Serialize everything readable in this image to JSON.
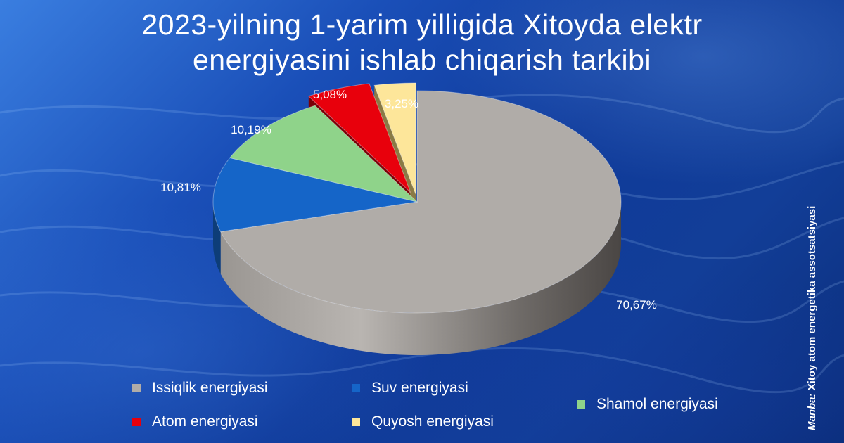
{
  "title": {
    "line1": "2023-yilning 1-yarim yilligida Xitoyda elektr",
    "line2": "energiyasini ishlab chiqarish tarkibi"
  },
  "colors": {
    "issiqlik": "#b0aca8",
    "suv": "#1565c8",
    "shamol": "#8fd38a",
    "atom": "#e8000c",
    "quyosh": "#fde69a"
  },
  "chart_data": {
    "type": "pie",
    "style": "3d-exploded",
    "categories": [
      "Issiqlik energiyasi",
      "Suv energiyasi",
      "Shamol energiyasi",
      "Atom energiyasi",
      "Quyosh energiyasi"
    ],
    "values": [
      70.67,
      10.81,
      10.19,
      5.08,
      3.25
    ],
    "value_labels": [
      "70,67%",
      "10,81%",
      "10,19%",
      "5,08%",
      "3,25%"
    ],
    "exploded": [
      "Atom energiyasi",
      "Quyosh energiyasi"
    ],
    "legend_position": "bottom"
  },
  "legend": {
    "items": [
      {
        "label": "Issiqlik energiyasi",
        "color": "#b0aca8"
      },
      {
        "label": "Suv energiyasi",
        "color": "#1565c8"
      },
      {
        "label": "Shamol energiyasi",
        "color": "#8fd38a"
      },
      {
        "label": "Atom energiyasi",
        "color": "#e8000c"
      },
      {
        "label": "Quyosh energiyasi",
        "color": "#fde69a"
      }
    ]
  },
  "source": {
    "lead": "Manba:",
    "text": "Xitoy atom energetika assotsatsiyasi"
  }
}
